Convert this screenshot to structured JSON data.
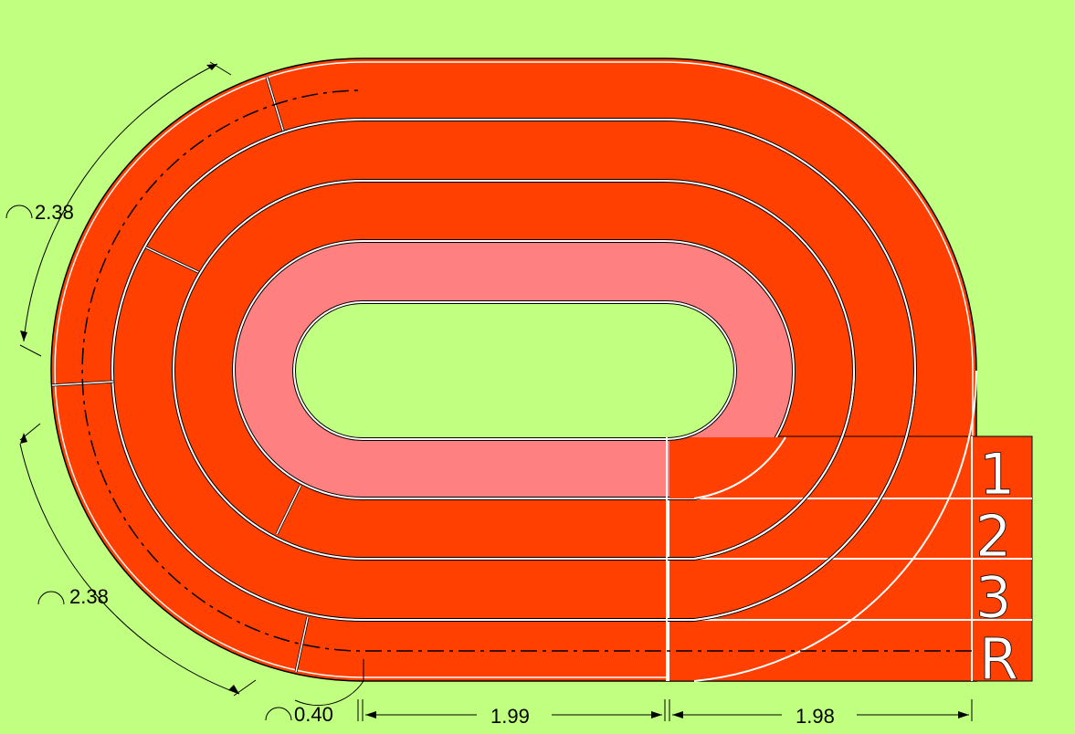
{
  "colors": {
    "background": "#c0ff80",
    "track": "#ff4000",
    "infield": "#ff8080",
    "lane_line": "#ffffff",
    "outline": "#000000"
  },
  "dimensions": {
    "arc_upper": "2.38",
    "arc_lower": "2.38",
    "arc_small": "0.40",
    "straight_left": "1.99",
    "straight_right": "1.98"
  },
  "lane_labels": [
    "1",
    "2",
    "3",
    "R"
  ],
  "icons": {
    "arc_symbol": "arc-length-icon"
  }
}
